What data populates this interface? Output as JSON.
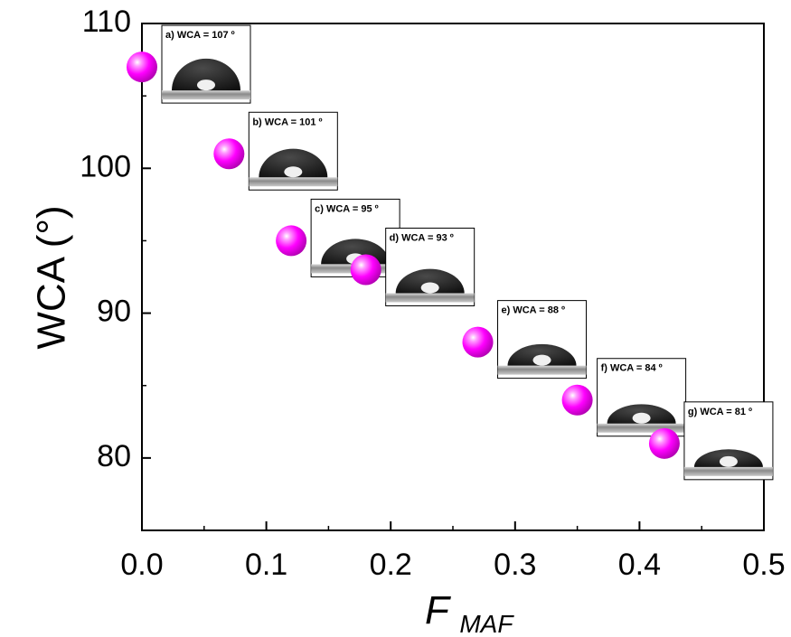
{
  "chart_data": {
    "type": "scatter",
    "title": "",
    "xlabel": "F",
    "xlabel_subscript": "MAF",
    "ylabel": "WCA (°)",
    "xlim": [
      0.0,
      0.5
    ],
    "ylim": [
      75,
      110
    ],
    "x_ticks": [
      "0.0",
      "0.1",
      "0.2",
      "0.3",
      "0.4",
      "0.5"
    ],
    "y_ticks": [
      "80",
      "90",
      "100",
      "110"
    ],
    "grid": false,
    "marker_color": "#ff00ff",
    "series": [
      {
        "x": [
          0.0,
          0.07,
          0.12,
          0.18,
          0.27,
          0.35,
          0.42
        ],
        "y": [
          107,
          101,
          95,
          93,
          88,
          84,
          81
        ]
      }
    ],
    "annotations": [
      "a) WCA = 107 º",
      "b) WCA = 101 º",
      "c) WCA = 95 º",
      "d) WCA = 93 º",
      "e) WCA = 88 º",
      "f) WCA = 84 º",
      "g) WCA = 81 º"
    ]
  }
}
